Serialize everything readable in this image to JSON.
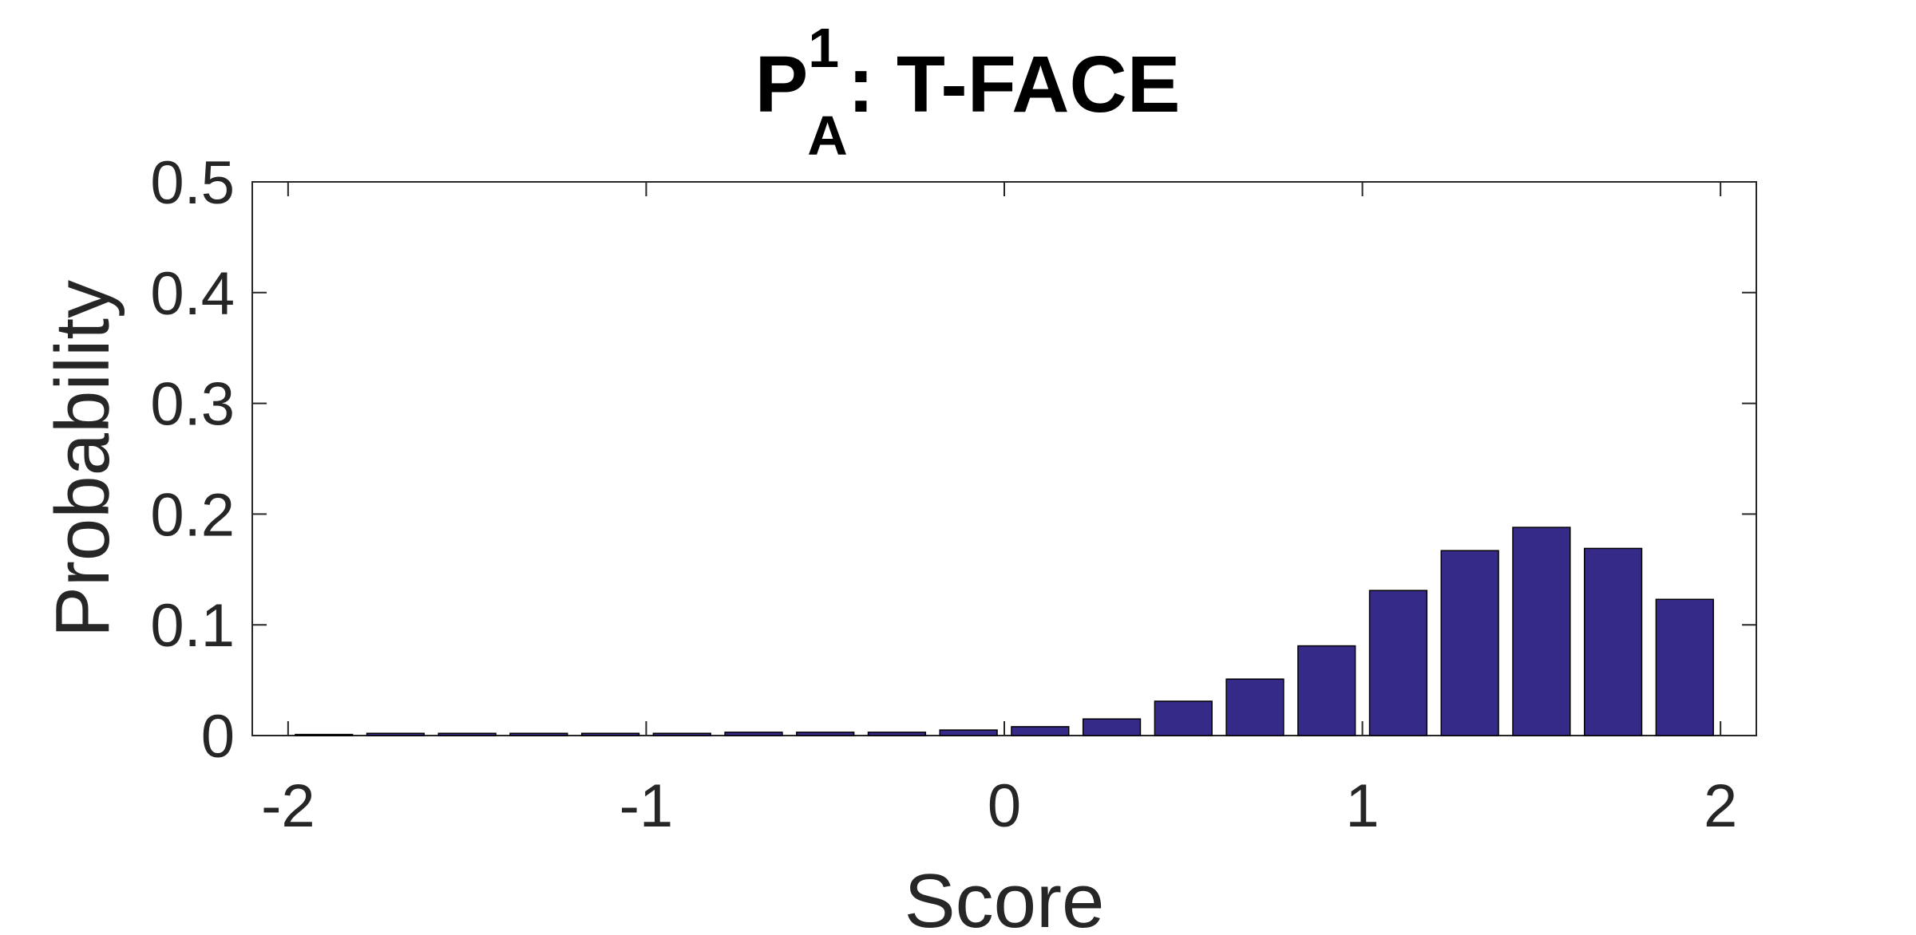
{
  "chart_data": {
    "type": "bar",
    "title": {
      "base": "P",
      "superscript": "1",
      "subscript": "A",
      "suffix": ": T-FACE"
    },
    "xlabel": "Score",
    "ylabel": "Probability",
    "xlim": [
      -2.1,
      2.1
    ],
    "ylim": [
      0,
      0.5
    ],
    "xticks": [
      -2,
      -1,
      0,
      1,
      2
    ],
    "xtick_labels": [
      "-2",
      "-1",
      "0",
      "1",
      "2"
    ],
    "yticks": [
      0,
      0.1,
      0.2,
      0.3,
      0.4,
      0.5
    ],
    "ytick_labels": [
      "0",
      "0.1",
      "0.2",
      "0.3",
      "0.4",
      "0.5"
    ],
    "grid": false,
    "bar_color": "#352A87",
    "bar_width": 0.16,
    "x": [
      -1.9,
      -1.7,
      -1.5,
      -1.3,
      -1.1,
      -0.9,
      -0.7,
      -0.5,
      -0.3,
      -0.1,
      0.1,
      0.3,
      0.5,
      0.7,
      0.9,
      1.1,
      1.3,
      1.5,
      1.7,
      1.9
    ],
    "values": [
      0.001,
      0.002,
      0.002,
      0.002,
      0.002,
      0.002,
      0.003,
      0.003,
      0.003,
      0.005,
      0.008,
      0.015,
      0.031,
      0.051,
      0.081,
      0.131,
      0.167,
      0.188,
      0.169,
      0.123
    ]
  }
}
